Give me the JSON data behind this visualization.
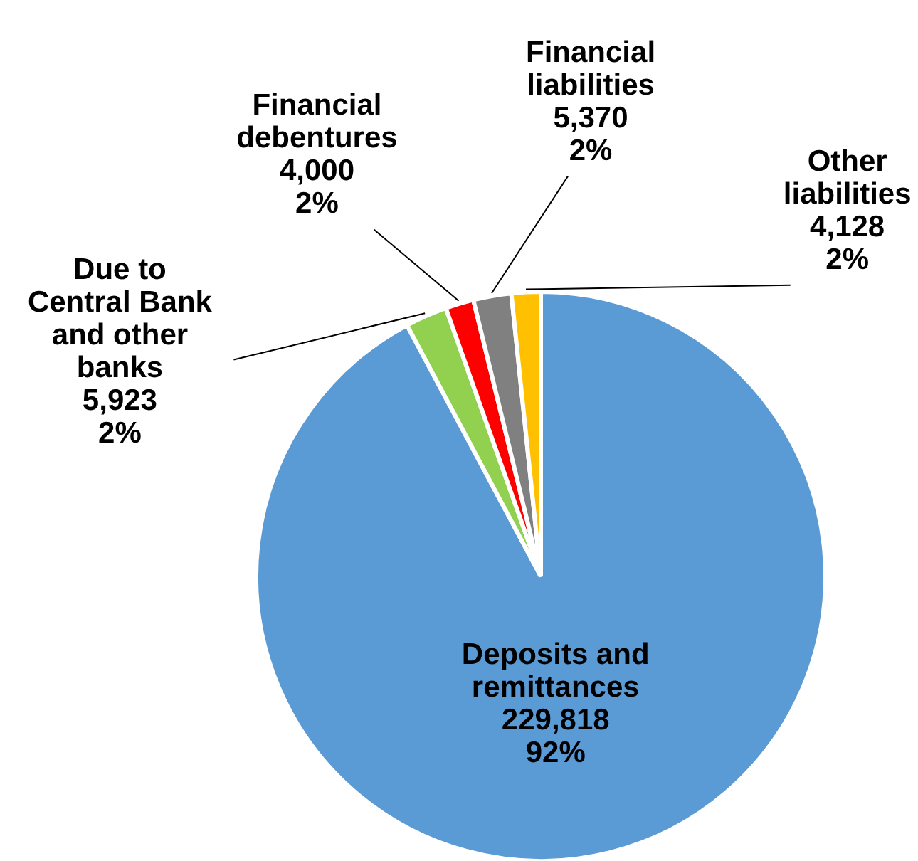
{
  "chart_data": {
    "type": "pie",
    "categories": [
      "Deposits and remittances",
      "Due to Central Bank and other banks",
      "Financial debentures",
      "Financial liabilities",
      "Other liabilities"
    ],
    "values": [
      229818,
      5923,
      4000,
      5370,
      4128
    ],
    "value_labels": [
      "229,818\n92%",
      "5,923\n2%",
      "4,000\n2%",
      "5,370\n2%",
      "4,128\n2%"
    ],
    "colors": [
      "#5b9bd5",
      "#92d050",
      "#ff0000",
      "#808080",
      "#ffc000"
    ]
  }
}
